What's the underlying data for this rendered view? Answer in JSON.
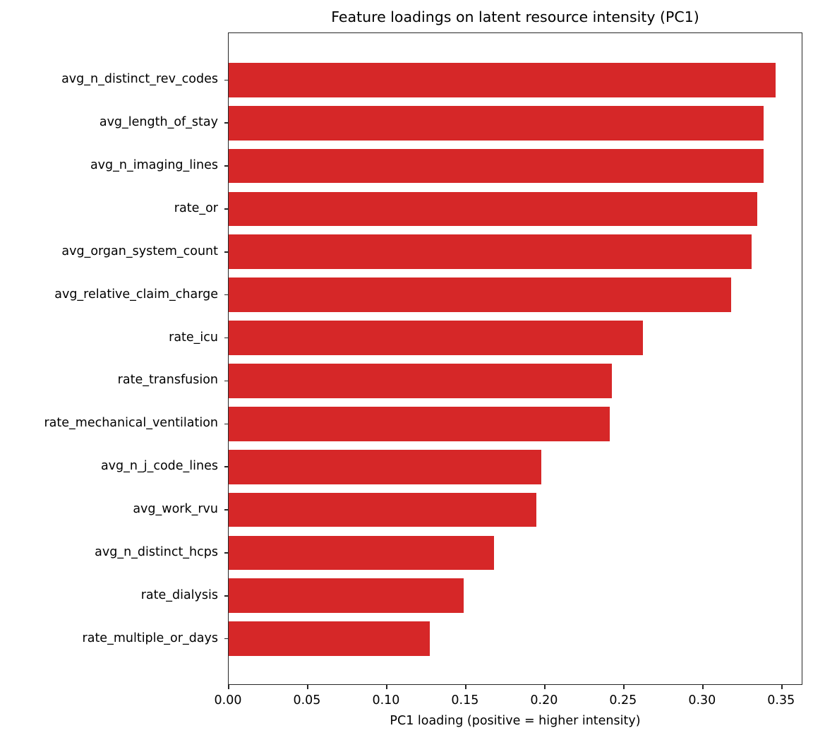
{
  "chart_data": {
    "type": "bar",
    "orientation": "horizontal",
    "title": "Feature loadings on latent resource intensity (PC1)",
    "xlabel": "PC1 loading (positive = higher intensity)",
    "ylabel": "",
    "xlim": [
      0,
      0.3635
    ],
    "xticks": [
      0.0,
      0.05,
      0.1,
      0.15,
      0.2,
      0.25,
      0.3,
      0.35
    ],
    "xtick_labels": [
      "0.00",
      "0.05",
      "0.10",
      "0.15",
      "0.20",
      "0.25",
      "0.30",
      "0.35"
    ],
    "grid": false,
    "legend": null,
    "color": "#d62728",
    "categories": [
      "avg_n_distinct_rev_codes",
      "avg_length_of_stay",
      "avg_n_imaging_lines",
      "rate_or",
      "avg_organ_system_count",
      "avg_relative_claim_charge",
      "rate_icu",
      "rate_transfusion",
      "rate_mechanical_ventilation",
      "avg_n_j_code_lines",
      "avg_work_rvu",
      "avg_n_distinct_hcps",
      "rate_dialysis",
      "rate_multiple_or_days"
    ],
    "values": [
      0.346,
      0.3385,
      0.3385,
      0.3345,
      0.331,
      0.318,
      0.262,
      0.2425,
      0.241,
      0.198,
      0.1947,
      0.168,
      0.1487,
      0.1273
    ]
  }
}
